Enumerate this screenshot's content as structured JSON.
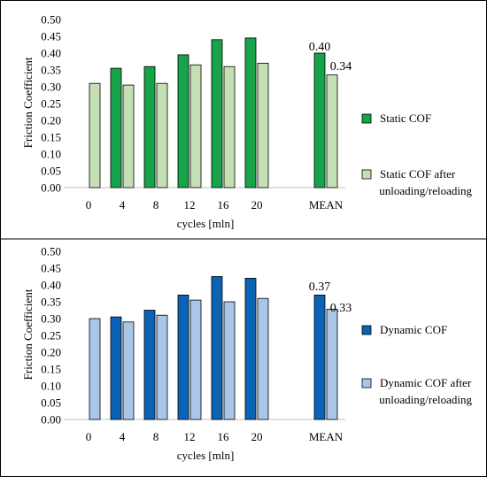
{
  "chart_data": [
    {
      "type": "bar",
      "categories": [
        "0",
        "4",
        "8",
        "12",
        "16",
        "20",
        "MEAN"
      ],
      "series": [
        {
          "name": "Static COF",
          "values": [
            null,
            0.355,
            0.36,
            0.395,
            0.44,
            0.445,
            0.4
          ],
          "color": "#16a34a"
        },
        {
          "name": "Static COF after unloading/reloading",
          "values": [
            0.31,
            0.305,
            0.31,
            0.365,
            0.36,
            0.37,
            0.335
          ],
          "color": "#c5e0b4"
        }
      ],
      "annotations": [
        "0.40",
        "0.34"
      ],
      "xlabel": "cycles [mln]",
      "ylabel": "Friction Coefficient",
      "yticks": [
        "0.00",
        "0.05",
        "0.10",
        "0.15",
        "0.20",
        "0.25",
        "0.30",
        "0.35",
        "0.40",
        "0.45",
        "0.50"
      ],
      "ylim": [
        0,
        0.5
      ],
      "legend_position": "right"
    },
    {
      "type": "bar",
      "categories": [
        "0",
        "4",
        "8",
        "12",
        "16",
        "20",
        "MEAN"
      ],
      "series": [
        {
          "name": "Dynamic COF",
          "values": [
            null,
            0.305,
            0.325,
            0.37,
            0.425,
            0.42,
            0.37
          ],
          "color": "#0a63b5"
        },
        {
          "name": "Dynamic COF after unloading/reloading",
          "values": [
            0.3,
            0.29,
            0.31,
            0.355,
            0.35,
            0.36,
            0.328
          ],
          "color": "#a9c6e8"
        }
      ],
      "annotations": [
        "0.37",
        "0.33"
      ],
      "xlabel": "cycles [mln]",
      "ylabel": "Friction Coefficient",
      "yticks": [
        "0.00",
        "0.05",
        "0.10",
        "0.15",
        "0.20",
        "0.25",
        "0.30",
        "0.35",
        "0.40",
        "0.45",
        "0.50"
      ],
      "ylim": [
        0,
        0.5
      ],
      "legend_position": "right"
    }
  ]
}
